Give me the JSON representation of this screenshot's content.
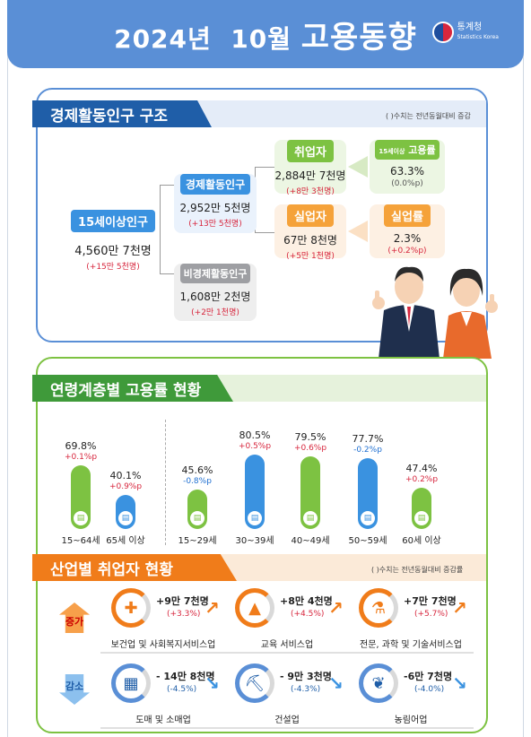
{
  "header": {
    "title_year": "2024년",
    "title_month": "10월",
    "title_main": "고용동향",
    "logo_kr": "통계청",
    "logo_en": "Statistics Korea"
  },
  "structure": {
    "title": "경제활동인구 구조",
    "note": "(   )수치는 전년동월대비 증감",
    "pop15": {
      "label": "15세이상인구",
      "value": "4,560만 7천명",
      "change": "(+15만 5천명)"
    },
    "active": {
      "label": "경제활동인구",
      "value": "2,952만 5천명",
      "change": "(+13만 5천명)"
    },
    "inactive": {
      "label": "비경제활동인구",
      "value": "1,608만 2천명",
      "change": "(+2만 1천명)"
    },
    "employed": {
      "label": "취업자",
      "value": "2,884만 7천명",
      "change": "(+8만 3천명)"
    },
    "unemployed": {
      "label": "실업자",
      "value": "67만 8천명",
      "change": "(+5만 1천명)"
    },
    "emp_rate": {
      "label_small": "15세이상",
      "label": "고용률",
      "value": "63.3%",
      "change": "(0.0%p)"
    },
    "unemp_rate": {
      "label": "실업률",
      "value": "2.3%",
      "change": "(+0.2%p)"
    }
  },
  "age": {
    "title": "연령계층별 고용률 현황",
    "colors": {
      "green": "#7dc242",
      "blue": "#3a92e0",
      "up": "#d7263d",
      "down": "#1f6fd1"
    }
  },
  "chart_data": {
    "type": "bar",
    "categories": [
      "15~64세",
      "65세 이상",
      "15~29세",
      "30~39세",
      "40~49세",
      "50~59세",
      "60세 이상"
    ],
    "values": [
      69.8,
      40.1,
      45.6,
      80.5,
      79.5,
      77.7,
      47.4
    ],
    "value_labels": [
      "69.8%",
      "40.1%",
      "45.6%",
      "80.5%",
      "79.5%",
      "77.7%",
      "47.4%"
    ],
    "changes": [
      "+0.1%p",
      "+0.9%p",
      "-0.8%p",
      "+0.5%p",
      "+0.6%p",
      "-0.2%p",
      "+0.2%p"
    ],
    "colors": [
      "green",
      "blue",
      "green",
      "blue",
      "green",
      "blue",
      "green"
    ],
    "ylim": [
      0,
      100
    ]
  },
  "industry": {
    "title": "산업별 취업자 현황",
    "note": "(   )수치는 전년동월대비 증감률",
    "increase_label": "증가",
    "decrease_label": "감소",
    "increase": [
      {
        "value": "+9만 7천명",
        "rate": "(+3.3%)",
        "name": "보건업 및 사회복지서비스업",
        "icon": "medical-bag-icon",
        "fill": 0.6
      },
      {
        "value": "+8만 4천명",
        "rate": "(+4.5%)",
        "name": "교육 서비스업",
        "icon": "graduation-cap-icon",
        "fill": 0.6
      },
      {
        "value": "+7만 7천명",
        "rate": "(+5.7%)",
        "name": "전문, 과학 및 기술서비스업",
        "icon": "flask-icon",
        "fill": 0.6
      }
    ],
    "decrease": [
      {
        "value": "- 14만 8천명",
        "rate": "(-4.5%)",
        "name": "도매 및 소매업",
        "icon": "shopping-basket-icon"
      },
      {
        "value": "- 9만 3천명",
        "rate": "(-4.3%)",
        "name": "건설업",
        "icon": "excavator-icon"
      },
      {
        "value": "-6만 7천명",
        "rate": "(-4.0%)",
        "name": "농림어업",
        "icon": "wheat-icon"
      }
    ]
  }
}
